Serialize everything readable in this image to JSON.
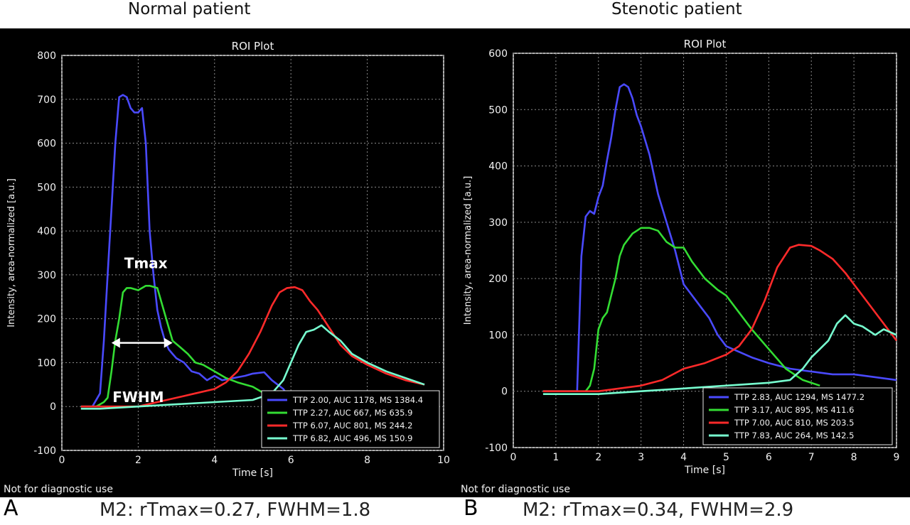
{
  "panels": {
    "A": {
      "heading": "Normal patient",
      "letter": "A",
      "caption": "M2: rTmax=0.27, FWHM=1.8",
      "footer": "Not for diagnostic use"
    },
    "B": {
      "heading": "Stenotic patient",
      "letter": "B",
      "caption": "M2: rTmax=0.34, FWHM=2.9",
      "footer": "Not for diagnostic use"
    }
  },
  "chart_data": [
    {
      "type": "line",
      "title": "ROI Plot",
      "xlabel": "Time [s]",
      "ylabel": "Intensity, area-normalized [a.u.]",
      "xlim": [
        0,
        10
      ],
      "ylim": [
        -100,
        800
      ],
      "xticks": [
        0,
        2,
        4,
        6,
        8,
        10
      ],
      "yticks": [
        -100,
        0,
        100,
        200,
        300,
        400,
        500,
        600,
        700,
        800
      ],
      "grid": true,
      "legend_position": "bottom-right",
      "annotations": [
        {
          "text": "Tmax",
          "x": 2.2,
          "y": 315
        },
        {
          "text": "FWHM",
          "x": 2.0,
          "y": 10
        },
        {
          "type": "double-arrow",
          "x1": 1.3,
          "x2": 2.9,
          "y": 145
        }
      ],
      "series": [
        {
          "name": "TTP 2.00, AUC 1178, MS 1384.4",
          "color": "#4a4aff",
          "x": [
            0.5,
            0.8,
            1.0,
            1.1,
            1.2,
            1.3,
            1.4,
            1.5,
            1.6,
            1.7,
            1.8,
            1.9,
            2.0,
            2.1,
            2.2,
            2.3,
            2.4,
            2.5,
            2.6,
            2.7,
            2.8,
            2.9,
            3.0,
            3.2,
            3.4,
            3.6,
            3.8,
            4.0,
            4.2,
            4.5,
            4.8,
            5.0,
            5.3,
            5.5,
            5.8,
            6.0,
            6.5
          ],
          "y": [
            0,
            0,
            30,
            150,
            300,
            450,
            600,
            705,
            710,
            705,
            680,
            670,
            670,
            680,
            600,
            400,
            300,
            220,
            180,
            150,
            130,
            120,
            110,
            100,
            80,
            75,
            60,
            70,
            60,
            65,
            70,
            75,
            78,
            60,
            40,
            15,
            0
          ]
        },
        {
          "name": "TTP 2.27, AUC 667, MS 635.9",
          "color": "#33dd33",
          "x": [
            0.5,
            0.9,
            1.0,
            1.1,
            1.2,
            1.3,
            1.4,
            1.5,
            1.6,
            1.7,
            1.8,
            2.0,
            2.2,
            2.3,
            2.5,
            2.7,
            2.9,
            3.1,
            3.3,
            3.5,
            3.7,
            4.0,
            4.3,
            4.6,
            5.0,
            5.3,
            5.6,
            6.0
          ],
          "y": [
            0,
            0,
            5,
            10,
            20,
            80,
            150,
            200,
            260,
            270,
            270,
            265,
            275,
            275,
            270,
            210,
            150,
            135,
            120,
            100,
            95,
            80,
            65,
            55,
            45,
            30,
            15,
            0
          ]
        },
        {
          "name": "TTP 6.07, AUC 801, MS 244.2",
          "color": "#ff2a2a",
          "x": [
            0.5,
            1.0,
            2.0,
            3.0,
            3.5,
            4.0,
            4.3,
            4.6,
            4.9,
            5.2,
            5.5,
            5.7,
            5.9,
            6.1,
            6.3,
            6.5,
            6.7,
            7.0,
            7.3,
            7.6,
            8.0,
            8.5,
            9.0,
            9.5
          ],
          "y": [
            0,
            0,
            0,
            20,
            30,
            40,
            55,
            80,
            120,
            170,
            230,
            260,
            270,
            272,
            265,
            240,
            220,
            180,
            140,
            115,
            95,
            75,
            60,
            50
          ]
        },
        {
          "name": "TTP 6.82, AUC 496, MS 150.9",
          "color": "#77ffd0",
          "x": [
            0.5,
            1.0,
            2.0,
            3.0,
            4.0,
            5.0,
            5.5,
            5.8,
            6.0,
            6.2,
            6.4,
            6.6,
            6.8,
            7.0,
            7.3,
            7.6,
            8.0,
            8.5,
            9.0,
            9.5
          ],
          "y": [
            -5,
            -5,
            0,
            5,
            10,
            15,
            30,
            60,
            100,
            140,
            170,
            175,
            185,
            170,
            150,
            120,
            100,
            80,
            65,
            50
          ]
        }
      ]
    },
    {
      "type": "line",
      "title": "ROI Plot",
      "xlabel": "Time [s]",
      "ylabel": "Intensity, area-normalized [a.u.]",
      "xlim": [
        0,
        9
      ],
      "ylim": [
        -100,
        600
      ],
      "xticks": [
        0,
        1,
        2,
        3,
        4,
        5,
        6,
        7,
        8,
        9
      ],
      "yticks": [
        -100,
        0,
        100,
        200,
        300,
        400,
        500,
        600
      ],
      "grid": true,
      "legend_position": "bottom-right",
      "series": [
        {
          "name": "TTP 2.83, AUC 1294, MS 1477.2",
          "color": "#4a4aff",
          "x": [
            0.7,
            1.0,
            1.5,
            1.6,
            1.7,
            1.8,
            1.9,
            2.0,
            2.1,
            2.2,
            2.3,
            2.4,
            2.5,
            2.6,
            2.7,
            2.8,
            2.9,
            3.0,
            3.2,
            3.4,
            3.6,
            3.8,
            4.0,
            4.2,
            4.4,
            4.6,
            4.8,
            5.0,
            5.3,
            5.6,
            6.0,
            6.5,
            7.0,
            7.5,
            8.0,
            8.5,
            9.0
          ],
          "y": [
            0,
            0,
            0,
            240,
            310,
            320,
            315,
            345,
            365,
            410,
            450,
            500,
            540,
            545,
            540,
            520,
            490,
            470,
            420,
            350,
            300,
            250,
            190,
            170,
            150,
            130,
            100,
            80,
            70,
            60,
            50,
            40,
            35,
            30,
            30,
            25,
            20
          ]
        },
        {
          "name": "TTP 3.17, AUC 895, MS 411.6",
          "color": "#33dd33",
          "x": [
            0.7,
            1.0,
            1.5,
            1.7,
            1.8,
            1.9,
            2.0,
            2.1,
            2.2,
            2.3,
            2.4,
            2.5,
            2.6,
            2.7,
            2.8,
            2.9,
            3.0,
            3.2,
            3.4,
            3.6,
            3.8,
            4.0,
            4.2,
            4.5,
            4.8,
            5.0,
            5.3,
            5.6,
            6.0,
            6.4,
            6.8,
            7.2
          ],
          "y": [
            0,
            0,
            0,
            0,
            10,
            40,
            110,
            130,
            140,
            170,
            200,
            240,
            260,
            270,
            280,
            285,
            290,
            290,
            285,
            265,
            255,
            255,
            230,
            200,
            180,
            170,
            140,
            110,
            75,
            40,
            20,
            10
          ]
        },
        {
          "name": "TTP 7.00, AUC 810, MS 203.5",
          "color": "#ff2a2a",
          "x": [
            0.7,
            1.5,
            2.0,
            3.0,
            3.5,
            4.0,
            4.5,
            5.0,
            5.3,
            5.6,
            5.9,
            6.2,
            6.5,
            6.7,
            7.0,
            7.2,
            7.5,
            7.8,
            8.0,
            8.3,
            8.6,
            9.0
          ],
          "y": [
            0,
            0,
            0,
            10,
            20,
            40,
            50,
            65,
            80,
            110,
            160,
            220,
            255,
            260,
            258,
            250,
            235,
            210,
            190,
            160,
            130,
            90
          ]
        },
        {
          "name": "TTP 7.83, AUC 264, MS 142.5",
          "color": "#77ffd0",
          "x": [
            0.7,
            1.0,
            2.0,
            3.0,
            4.0,
            5.0,
            6.0,
            6.5,
            6.8,
            7.0,
            7.2,
            7.4,
            7.6,
            7.8,
            8.0,
            8.2,
            8.5,
            8.7,
            9.0
          ],
          "y": [
            -5,
            -5,
            -5,
            0,
            5,
            10,
            15,
            20,
            40,
            60,
            75,
            90,
            120,
            135,
            120,
            115,
            100,
            110,
            100
          ]
        }
      ]
    }
  ]
}
